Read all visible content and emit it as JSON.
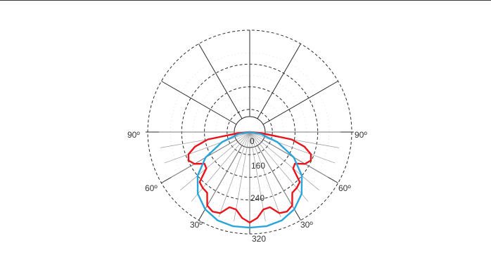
{
  "chart_data": {
    "type": "polar-line",
    "radial_scale": {
      "tick_labels": [
        "0",
        "160",
        "240",
        "320"
      ],
      "rings": [
        80,
        160,
        240,
        320
      ]
    },
    "angle_labels": {
      "left_90": "90º",
      "right_90": "90º",
      "left_60": "60º",
      "right_60": "60º",
      "left_30": "30º",
      "right_30": "30º"
    },
    "spoke_angles_deg": [
      0,
      10,
      20,
      30,
      40,
      50,
      60,
      70,
      80,
      90
    ],
    "grid": true,
    "series": [
      {
        "color": "#e8131b",
        "points": [
          [
            -90,
            0
          ],
          [
            -85,
            40
          ],
          [
            -80,
            150
          ],
          [
            -75,
            200
          ],
          [
            -70,
            230
          ],
          [
            -65,
            238
          ],
          [
            -60,
            225
          ],
          [
            -55,
            195
          ],
          [
            -50,
            200
          ],
          [
            -45,
            250
          ],
          [
            -40,
            258
          ],
          [
            -35,
            262
          ],
          [
            -30,
            300
          ],
          [
            -25,
            310
          ],
          [
            -20,
            305
          ],
          [
            -15,
            275
          ],
          [
            -10,
            278
          ],
          [
            -5,
            305
          ],
          [
            0,
            320
          ],
          [
            5,
            305
          ],
          [
            10,
            278
          ],
          [
            15,
            275
          ],
          [
            20,
            305
          ],
          [
            25,
            310
          ],
          [
            30,
            300
          ],
          [
            35,
            262
          ],
          [
            40,
            258
          ],
          [
            45,
            250
          ],
          [
            50,
            200
          ],
          [
            55,
            195
          ],
          [
            60,
            225
          ],
          [
            65,
            238
          ],
          [
            70,
            230
          ],
          [
            75,
            200
          ],
          [
            80,
            150
          ],
          [
            85,
            40
          ],
          [
            90,
            0
          ]
        ]
      },
      {
        "color": "#2aa5dc",
        "points": [
          [
            -90,
            0
          ],
          [
            -80,
            40
          ],
          [
            -70,
            105
          ],
          [
            -60,
            180
          ],
          [
            -50,
            240
          ],
          [
            -40,
            285
          ],
          [
            -30,
            315
          ],
          [
            -20,
            332
          ],
          [
            -10,
            338
          ],
          [
            0,
            338
          ],
          [
            10,
            338
          ],
          [
            20,
            332
          ],
          [
            30,
            315
          ],
          [
            40,
            285
          ],
          [
            50,
            240
          ],
          [
            60,
            180
          ],
          [
            70,
            105
          ],
          [
            80,
            40
          ],
          [
            90,
            0
          ]
        ]
      }
    ]
  }
}
